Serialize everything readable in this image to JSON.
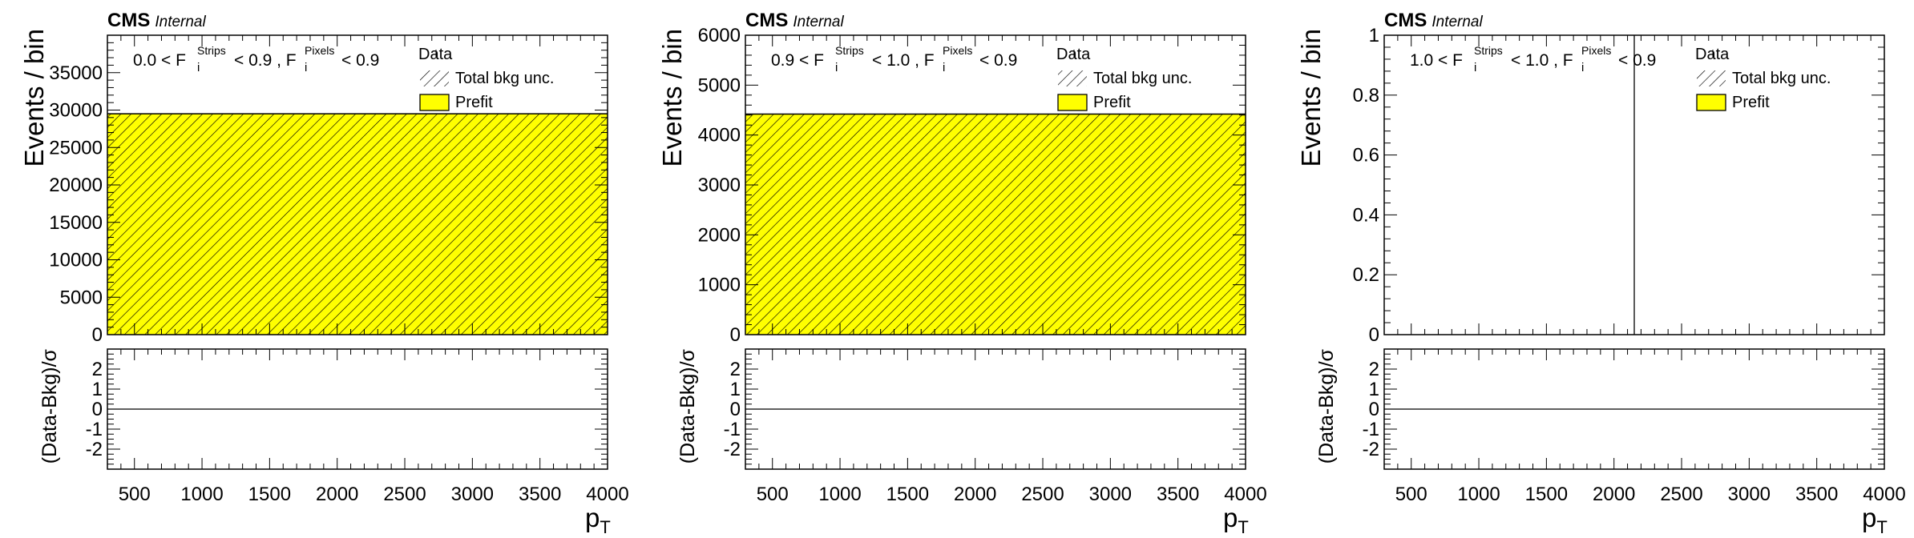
{
  "figure": {
    "experiment": "CMS",
    "status": "Internal",
    "ylabel": "Events / bin",
    "ratio_ylabel": "(Data-Bkg)/σ",
    "xlabel_base": "p",
    "xlabel_sub": "T",
    "legend": {
      "data": "Data",
      "unc": "Total bkg unc.",
      "prefit": "Prefit"
    },
    "colors": {
      "prefit_fill": "#ffff00",
      "hatch": "#000000",
      "frame": "#000000"
    }
  },
  "chart_data": [
    {
      "type": "bar",
      "region": {
        "lo": "0.0",
        "mid": "0.9",
        "hi": "0.9"
      },
      "x_range": [
        300,
        4000
      ],
      "xticks": [
        500,
        1000,
        1500,
        2000,
        2500,
        3000,
        3500,
        4000
      ],
      "ylim": [
        0,
        40000
      ],
      "yticks": [
        0,
        5000,
        10000,
        15000,
        20000,
        25000,
        30000,
        35000
      ],
      "bins": [
        {
          "x0": 300,
          "x1": 4000,
          "prefit": 29500,
          "unc": 29500
        }
      ],
      "ratio": {
        "ylim": [
          -3,
          3
        ],
        "yticks": [
          -2,
          -1,
          0,
          1,
          2
        ],
        "values": [
          0
        ]
      },
      "legend": "top-right",
      "grid": false
    },
    {
      "type": "bar",
      "region": {
        "lo": "0.9",
        "mid": "1.0",
        "hi": "0.9"
      },
      "x_range": [
        300,
        4000
      ],
      "xticks": [
        500,
        1000,
        1500,
        2000,
        2500,
        3000,
        3500,
        4000
      ],
      "ylim": [
        0,
        6000
      ],
      "yticks": [
        0,
        1000,
        2000,
        3000,
        4000,
        5000,
        6000
      ],
      "bins": [
        {
          "x0": 300,
          "x1": 4000,
          "prefit": 4420,
          "unc": 4420
        }
      ],
      "ratio": {
        "ylim": [
          -3,
          3
        ],
        "yticks": [
          -2,
          -1,
          0,
          1,
          2
        ],
        "values": [
          0
        ]
      },
      "legend": "top-right",
      "grid": false
    },
    {
      "type": "bar",
      "region": {
        "lo": "1.0",
        "mid": "1.0",
        "hi": "0.9"
      },
      "x_range": [
        300,
        4000
      ],
      "xticks": [
        500,
        1000,
        1500,
        2000,
        2500,
        3000,
        3500,
        4000
      ],
      "ylim": [
        0,
        1
      ],
      "yticks": [
        0,
        0.2,
        0.4,
        0.6,
        0.8,
        1
      ],
      "bins": [],
      "vertical_line_x": 2150,
      "ratio": {
        "ylim": [
          -3,
          3
        ],
        "yticks": [
          -2,
          -1,
          0,
          1,
          2
        ],
        "values": [
          0
        ]
      },
      "legend": "top-right",
      "grid": false
    }
  ]
}
